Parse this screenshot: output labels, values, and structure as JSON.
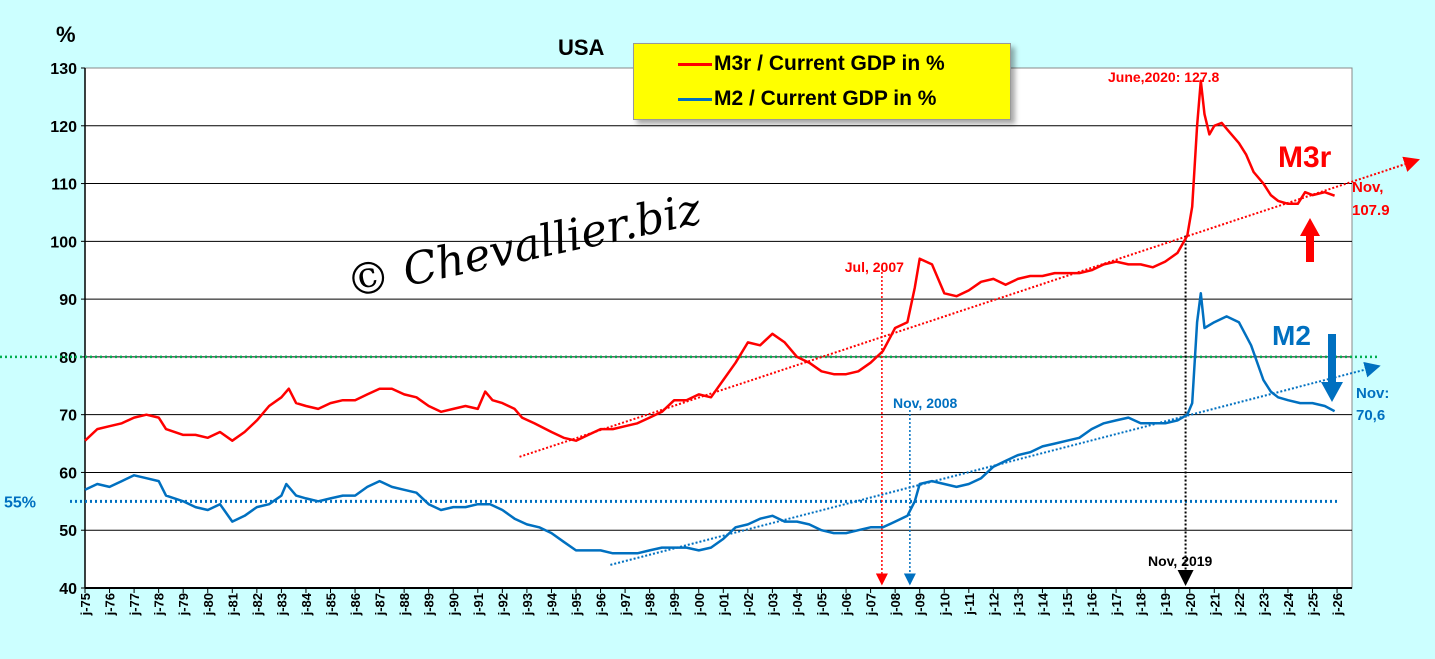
{
  "chart_data": {
    "type": "line",
    "title": "USA",
    "ylabel": "%",
    "ylim": [
      40,
      130
    ],
    "yticks": [
      40,
      50,
      60,
      70,
      80,
      90,
      100,
      110,
      120,
      130
    ],
    "xlim": [
      1975,
      2026.6
    ],
    "x_tick_labels": [
      "j-75",
      "j-76",
      "j-77",
      "j-78",
      "j-79",
      "j-80",
      "j-81",
      "j-82",
      "j-83",
      "j-84",
      "j-85",
      "j-86",
      "j-87",
      "j-88",
      "j-89",
      "j-90",
      "j-91",
      "j-92",
      "j-93",
      "j-94",
      "j-95",
      "j-96",
      "j-97",
      "j-98",
      "j-99",
      "j-00",
      "j-01",
      "j-02",
      "j-03",
      "j-04",
      "j-05",
      "j-06",
      "j-07",
      "j-08",
      "j-09",
      "j-10",
      "j-11",
      "j-12",
      "j-13",
      "j-14",
      "j-15",
      "j-16",
      "j-17",
      "j-18",
      "j-19",
      "j-20",
      "j-21",
      "j-22",
      "j-23",
      "j-24",
      "j-25",
      "j-26"
    ],
    "grid": "horizontal",
    "legend_placement": "top-center",
    "series": [
      {
        "name": "M3r / Current GDP in %",
        "color": "#ff0000",
        "points": [
          [
            1975.0,
            65.5
          ],
          [
            1975.5,
            67.5
          ],
          [
            1976.0,
            68
          ],
          [
            1976.5,
            68.5
          ],
          [
            1977.0,
            69.5
          ],
          [
            1977.5,
            70
          ],
          [
            1978.0,
            69.5
          ],
          [
            1978.3,
            67.5
          ],
          [
            1979.0,
            66.5
          ],
          [
            1979.5,
            66.5
          ],
          [
            1980.0,
            66
          ],
          [
            1980.5,
            67
          ],
          [
            1981.0,
            65.5
          ],
          [
            1981.5,
            67
          ],
          [
            1982.0,
            69
          ],
          [
            1982.5,
            71.5
          ],
          [
            1983.0,
            73
          ],
          [
            1983.3,
            74.5
          ],
          [
            1983.6,
            72
          ],
          [
            1984.0,
            71.5
          ],
          [
            1984.5,
            71
          ],
          [
            1985.0,
            72
          ],
          [
            1985.5,
            72.5
          ],
          [
            1986.0,
            72.5
          ],
          [
            1986.5,
            73.5
          ],
          [
            1987.0,
            74.5
          ],
          [
            1987.5,
            74.5
          ],
          [
            1988.0,
            73.5
          ],
          [
            1988.5,
            73
          ],
          [
            1989.0,
            71.5
          ],
          [
            1989.5,
            70.5
          ],
          [
            1990.0,
            71
          ],
          [
            1990.5,
            71.5
          ],
          [
            1991.0,
            71
          ],
          [
            1991.3,
            74
          ],
          [
            1991.6,
            72.5
          ],
          [
            1992.0,
            72
          ],
          [
            1992.5,
            71
          ],
          [
            1992.8,
            69.5
          ],
          [
            1993.3,
            68.5
          ],
          [
            1994.0,
            67
          ],
          [
            1994.5,
            66
          ],
          [
            1995.0,
            65.5
          ],
          [
            1995.5,
            66.5
          ],
          [
            1996.0,
            67.5
          ],
          [
            1996.5,
            67.5
          ],
          [
            1997.0,
            68
          ],
          [
            1997.5,
            68.5
          ],
          [
            1998.0,
            69.5
          ],
          [
            1998.5,
            70.5
          ],
          [
            1999.0,
            72.5
          ],
          [
            1999.5,
            72.5
          ],
          [
            2000.0,
            73.5
          ],
          [
            2000.5,
            73
          ],
          [
            2001.0,
            76
          ],
          [
            2001.5,
            79
          ],
          [
            2002.0,
            82.5
          ],
          [
            2002.5,
            82
          ],
          [
            2003.0,
            84
          ],
          [
            2003.5,
            82.5
          ],
          [
            2004.0,
            80
          ],
          [
            2004.5,
            79
          ],
          [
            2005.0,
            77.5
          ],
          [
            2005.5,
            77
          ],
          [
            2006.0,
            77
          ],
          [
            2006.5,
            77.5
          ],
          [
            2007.0,
            79
          ],
          [
            2007.5,
            81
          ],
          [
            2008.0,
            85
          ],
          [
            2008.5,
            86
          ],
          [
            2008.8,
            92
          ],
          [
            2009.0,
            97
          ],
          [
            2009.5,
            96
          ],
          [
            2010.0,
            91
          ],
          [
            2010.5,
            90.5
          ],
          [
            2011.0,
            91.5
          ],
          [
            2011.5,
            93
          ],
          [
            2012.0,
            93.5
          ],
          [
            2012.5,
            92.5
          ],
          [
            2013.0,
            93.5
          ],
          [
            2013.5,
            94
          ],
          [
            2014.0,
            94
          ],
          [
            2014.5,
            94.5
          ],
          [
            2015.0,
            94.5
          ],
          [
            2015.5,
            94.5
          ],
          [
            2016.0,
            95
          ],
          [
            2016.5,
            96
          ],
          [
            2017.0,
            96.5
          ],
          [
            2017.5,
            96
          ],
          [
            2018.0,
            96
          ],
          [
            2018.5,
            95.5
          ],
          [
            2019.0,
            96.5
          ],
          [
            2019.5,
            98
          ],
          [
            2019.9,
            101
          ],
          [
            2020.1,
            106
          ],
          [
            2020.3,
            120
          ],
          [
            2020.45,
            127.8
          ],
          [
            2020.6,
            122
          ],
          [
            2020.8,
            118.5
          ],
          [
            2021.0,
            120
          ],
          [
            2021.3,
            120.5
          ],
          [
            2021.6,
            119
          ],
          [
            2022.0,
            117
          ],
          [
            2022.3,
            115
          ],
          [
            2022.6,
            112
          ],
          [
            2023.0,
            110
          ],
          [
            2023.3,
            108
          ],
          [
            2023.6,
            107
          ],
          [
            2024.0,
            106.5
          ],
          [
            2024.4,
            106.5
          ],
          [
            2024.7,
            108.5
          ],
          [
            2025.0,
            108
          ],
          [
            2025.5,
            108.5
          ],
          [
            2025.9,
            107.9
          ]
        ]
      },
      {
        "name": "M2 / Current GDP in %",
        "color": "#0070c0",
        "points": [
          [
            1975.0,
            57
          ],
          [
            1975.5,
            58
          ],
          [
            1976.0,
            57.5
          ],
          [
            1976.5,
            58.5
          ],
          [
            1977.0,
            59.5
          ],
          [
            1977.5,
            59
          ],
          [
            1978.0,
            58.5
          ],
          [
            1978.3,
            56
          ],
          [
            1979.0,
            55
          ],
          [
            1979.5,
            54
          ],
          [
            1980.0,
            53.5
          ],
          [
            1980.5,
            54.5
          ],
          [
            1981.0,
            51.5
          ],
          [
            1981.5,
            52.5
          ],
          [
            1982.0,
            54
          ],
          [
            1982.5,
            54.5
          ],
          [
            1983.0,
            56
          ],
          [
            1983.2,
            58
          ],
          [
            1983.6,
            56
          ],
          [
            1984.0,
            55.5
          ],
          [
            1984.5,
            55
          ],
          [
            1985.0,
            55.5
          ],
          [
            1985.5,
            56
          ],
          [
            1986.0,
            56
          ],
          [
            1986.5,
            57.5
          ],
          [
            1987.0,
            58.5
          ],
          [
            1987.5,
            57.5
          ],
          [
            1988.0,
            57
          ],
          [
            1988.5,
            56.5
          ],
          [
            1989.0,
            54.5
          ],
          [
            1989.5,
            53.5
          ],
          [
            1990.0,
            54
          ],
          [
            1990.5,
            54
          ],
          [
            1991.0,
            54.5
          ],
          [
            1991.5,
            54.5
          ],
          [
            1992.0,
            53.5
          ],
          [
            1992.5,
            52
          ],
          [
            1993.0,
            51
          ],
          [
            1993.5,
            50.5
          ],
          [
            1994.0,
            49.5
          ],
          [
            1994.5,
            48
          ],
          [
            1995.0,
            46.5
          ],
          [
            1995.5,
            46.5
          ],
          [
            1996.0,
            46.5
          ],
          [
            1996.5,
            46
          ],
          [
            1997.0,
            46
          ],
          [
            1997.5,
            46
          ],
          [
            1998.0,
            46.5
          ],
          [
            1998.5,
            47
          ],
          [
            1999.0,
            47
          ],
          [
            1999.5,
            47
          ],
          [
            2000.0,
            46.5
          ],
          [
            2000.5,
            47
          ],
          [
            2001.0,
            48.5
          ],
          [
            2001.5,
            50.5
          ],
          [
            2002.0,
            51
          ],
          [
            2002.5,
            52
          ],
          [
            2003.0,
            52.5
          ],
          [
            2003.5,
            51.5
          ],
          [
            2004.0,
            51.5
          ],
          [
            2004.5,
            51
          ],
          [
            2005.0,
            50
          ],
          [
            2005.5,
            49.5
          ],
          [
            2006.0,
            49.5
          ],
          [
            2006.5,
            50
          ],
          [
            2007.0,
            50.5
          ],
          [
            2007.5,
            50.5
          ],
          [
            2008.0,
            51.5
          ],
          [
            2008.5,
            52.5
          ],
          [
            2008.8,
            55
          ],
          [
            2009.0,
            58
          ],
          [
            2009.5,
            58.5
          ],
          [
            2010.0,
            58
          ],
          [
            2010.5,
            57.5
          ],
          [
            2011.0,
            58
          ],
          [
            2011.5,
            59
          ],
          [
            2012.0,
            61
          ],
          [
            2012.5,
            62
          ],
          [
            2013.0,
            63
          ],
          [
            2013.5,
            63.5
          ],
          [
            2014.0,
            64.5
          ],
          [
            2014.5,
            65
          ],
          [
            2015.0,
            65.5
          ],
          [
            2015.5,
            66
          ],
          [
            2016.0,
            67.5
          ],
          [
            2016.5,
            68.5
          ],
          [
            2017.0,
            69
          ],
          [
            2017.5,
            69.5
          ],
          [
            2018.0,
            68.5
          ],
          [
            2018.5,
            68.5
          ],
          [
            2019.0,
            68.5
          ],
          [
            2019.5,
            69
          ],
          [
            2019.9,
            70
          ],
          [
            2020.1,
            72
          ],
          [
            2020.3,
            86
          ],
          [
            2020.45,
            91
          ],
          [
            2020.6,
            85
          ],
          [
            2021.0,
            86
          ],
          [
            2021.5,
            87
          ],
          [
            2022.0,
            86
          ],
          [
            2022.5,
            82
          ],
          [
            2023.0,
            76
          ],
          [
            2023.3,
            74
          ],
          [
            2023.6,
            73
          ],
          [
            2024.0,
            72.5
          ],
          [
            2024.5,
            72
          ],
          [
            2025.0,
            72
          ],
          [
            2025.5,
            71.5
          ],
          [
            2025.9,
            70.6
          ]
        ]
      }
    ],
    "trend_lines": [
      {
        "series": "M3r",
        "color": "#ff0000",
        "from": [
          1992.7,
          62.7
        ],
        "to": [
          2029.3,
          114.1
        ]
      },
      {
        "series": "M2",
        "color": "#0070c0",
        "from": [
          1996.4,
          44
        ],
        "to": [
          2027.7,
          78.4
        ]
      }
    ],
    "reference_lines": [
      {
        "value": 80,
        "color": "#00b050"
      },
      {
        "value": 55,
        "color": "#0070c0",
        "label": "55%"
      }
    ],
    "annotations": {
      "peak": "June,2020: 127.8",
      "jul2007": "Jul, 2007",
      "nov2008": "Nov, 2008",
      "nov2019": "Nov, 2019",
      "m3r_label": "M3r",
      "m2_label": "M2",
      "m3r_last_1": "Nov,",
      "m3r_last_2": "107.9",
      "m2_last_1": "Nov:",
      "m2_last_2": "70,6"
    },
    "watermark": "© Chevallier.biz"
  }
}
